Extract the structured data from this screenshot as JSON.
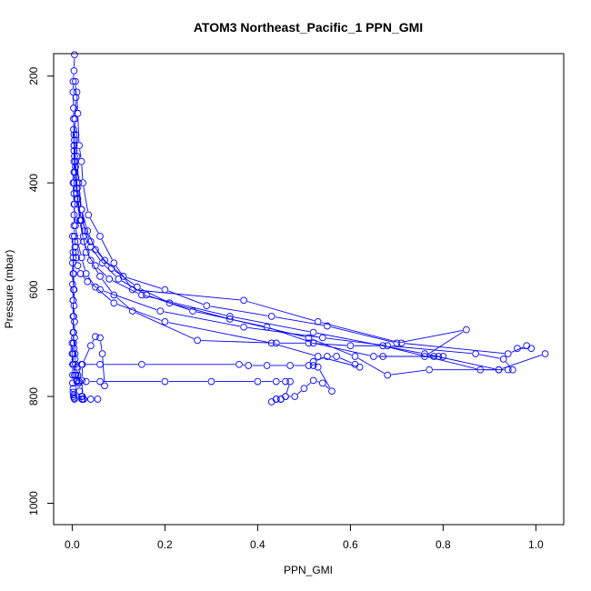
{
  "chart_data": {
    "type": "scatter",
    "title": "ATOM3 Northeast_Pacific_1 PPN_GMI",
    "xlabel": "PPN_GMI",
    "ylabel": "Pressure (mbar)",
    "xlim": [
      -0.04,
      1.06
    ],
    "ylim": [
      1040,
      158
    ],
    "y_inverted": true,
    "x_ticks": [
      0.0,
      0.2,
      0.4,
      0.6,
      0.8,
      1.0
    ],
    "x_tick_labels": [
      "0.0",
      "0.2",
      "0.4",
      "0.6",
      "0.8",
      "1.0"
    ],
    "y_ticks": [
      200,
      400,
      600,
      800,
      1000
    ],
    "y_tick_labels": [
      "200",
      "400",
      "600",
      "800",
      "1000"
    ],
    "grid": false,
    "legend": "none",
    "marker": "open-circle",
    "line": true,
    "color": "#0000ff",
    "series": [
      {
        "x": [
          0.005,
          0.004,
          0.002,
          0.002,
          0.003,
          0.003,
          0.004,
          0.004,
          0.004,
          0.004,
          0.004,
          0.004,
          0.005,
          0.004,
          0.004,
          0.005,
          0.006,
          0.006,
          0.007,
          0.009,
          0.012,
          0.018,
          0.033,
          0.06,
          0.19,
          0.37,
          0.54,
          0.68,
          0.87,
          0.93,
          0.95
        ],
        "y": [
          160,
          190,
          210,
          230,
          260,
          280,
          310,
          330,
          360,
          380,
          400,
          420,
          440,
          460,
          480,
          500,
          510,
          520,
          530,
          540,
          555,
          570,
          585,
          600,
          640,
          670,
          690,
          705,
          720,
          730,
          750
        ]
      },
      {
        "x": [
          0.007,
          0.008,
          0.006,
          0.005,
          0.007,
          0.01,
          0.012,
          0.018,
          0.024,
          0.03,
          0.05,
          0.08,
          0.15,
          0.34,
          0.52,
          0.76,
          0.92
        ],
        "y": [
          210,
          240,
          280,
          320,
          360,
          400,
          440,
          470,
          500,
          530,
          555,
          580,
          610,
          650,
          680,
          720,
          750
        ]
      },
      {
        "x": [
          0.01,
          0.012,
          0.015,
          0.02,
          0.023,
          0.035,
          0.06,
          0.09,
          0.13,
          0.37,
          0.53,
          0.71,
          0.94,
          0.98,
          0.99,
          0.96
        ],
        "y": [
          230,
          270,
          330,
          360,
          400,
          460,
          500,
          550,
          600,
          620,
          660,
          700,
          720,
          705,
          710,
          710
        ]
      },
      {
        "x": [
          0.003,
          0.004,
          0.006,
          0.01,
          0.02,
          0.04,
          0.07,
          0.11,
          0.2,
          0.29,
          0.43,
          0.55,
          0.7,
          0.85,
          0.76,
          0.67
        ],
        "y": [
          300,
          340,
          380,
          420,
          470,
          510,
          545,
          575,
          600,
          630,
          650,
          668,
          700,
          675,
          725,
          725
        ]
      },
      {
        "x": [
          0.008,
          0.01,
          0.014,
          0.02,
          0.027,
          0.04,
          0.065,
          0.1,
          0.16,
          0.26,
          0.42,
          0.52,
          0.65,
          0.8,
          0.79,
          0.78
        ],
        "y": [
          310,
          350,
          400,
          450,
          490,
          520,
          550,
          580,
          610,
          640,
          670,
          700,
          725,
          725,
          725,
          725
        ]
      },
      {
        "x": [
          0.004,
          0.007,
          0.011,
          0.02,
          0.033,
          0.05,
          0.085,
          0.14,
          0.21,
          0.34,
          0.51,
          0.61,
          0.68,
          0.77,
          0.92,
          1.02
        ],
        "y": [
          330,
          370,
          410,
          450,
          490,
          525,
          560,
          595,
          625,
          655,
          690,
          725,
          760,
          750,
          750,
          720
        ]
      },
      {
        "x": [
          0.005,
          0.008,
          0.012,
          0.016,
          0.025,
          0.04,
          0.06,
          0.09,
          0.13,
          0.27,
          0.44,
          0.51,
          0.6,
          0.67,
          0.88,
          0.94
        ],
        "y": [
          350,
          390,
          430,
          470,
          510,
          545,
          575,
          610,
          640,
          695,
          700,
          700,
          705,
          705,
          750,
          750
        ]
      },
      {
        "x": [
          0.002,
          0.004,
          0.007,
          0.012,
          0.02,
          0.03,
          0.05,
          0.09,
          0.2,
          0.43,
          0.53,
          0.62,
          0.61,
          0.57,
          0.55,
          0.52,
          0.53,
          0.56,
          0.54,
          0.52,
          0.5,
          0.48,
          0.46,
          0.45,
          0.44,
          0.43
        ],
        "y": [
          400,
          440,
          480,
          510,
          540,
          570,
          595,
          625,
          660,
          700,
          725,
          745,
          740,
          725,
          725,
          735,
          745,
          790,
          775,
          770,
          785,
          800,
          800,
          805,
          805,
          810
        ]
      },
      {
        "x": [
          0.001,
          0.002,
          0.002,
          0.003,
          0.002,
          0.003,
          0.002,
          0.003,
          0.002,
          0.003,
          0.005,
          0.01,
          0.015,
          0.03,
          0.06,
          0.2,
          0.3,
          0.4,
          0.44,
          0.46,
          0.47,
          0.46,
          0.45,
          0.44
        ],
        "y": [
          500,
          540,
          570,
          600,
          620,
          650,
          680,
          700,
          720,
          740,
          760,
          770,
          772,
          772,
          772,
          772,
          772,
          772,
          772,
          772,
          772,
          800,
          805,
          805
        ]
      },
      {
        "x": [
          0.002,
          0.003,
          0.004,
          0.004,
          0.005,
          0.005,
          0.006,
          0.007,
          0.008,
          0.01,
          0.02,
          0.06,
          0.15,
          0.36,
          0.38,
          0.42,
          0.47,
          0.51,
          0.52
        ],
        "y": [
          530,
          570,
          600,
          630,
          660,
          690,
          720,
          740,
          760,
          772,
          740,
          740,
          740,
          740,
          742,
          742,
          742,
          742,
          742
        ]
      },
      {
        "x": [
          0.001,
          0.001,
          0.002,
          0.002,
          0.003,
          0.004,
          0.006,
          0.01,
          0.012,
          0.014,
          0.016,
          0.02,
          0.021,
          0.022,
          0.022,
          0.021,
          0.022,
          0.04,
          0.05,
          0.06,
          0.065,
          0.07
        ],
        "y": [
          550,
          590,
          620,
          650,
          680,
          710,
          730,
          745,
          760,
          775,
          790,
          800,
          805,
          805,
          800,
          770,
          740,
          705,
          688,
          690,
          720,
          780
        ]
      },
      {
        "x": [
          0.0,
          0.0,
          0.001,
          0.001,
          0.001,
          0.002,
          0.002,
          0.003,
          0.003,
          0.004,
          0.005,
          0.025,
          0.04,
          0.055
        ],
        "y": [
          700,
          720,
          740,
          760,
          775,
          785,
          792,
          797,
          800,
          803,
          805,
          805,
          805,
          805
        ]
      }
    ]
  }
}
